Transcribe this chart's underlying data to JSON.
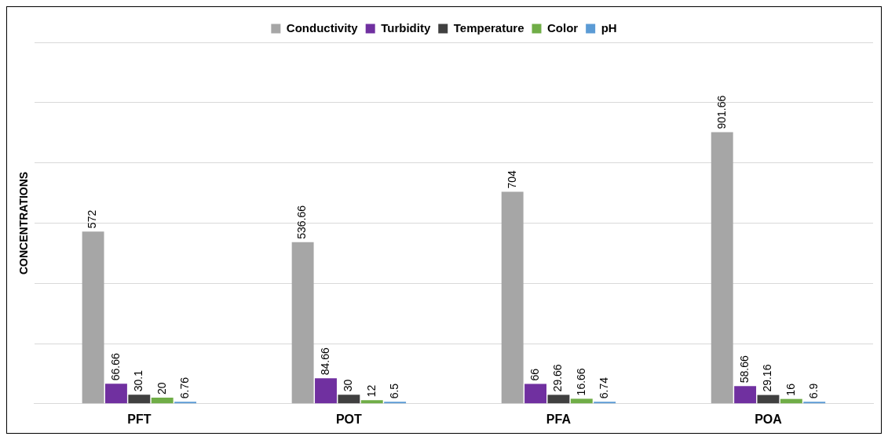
{
  "chart_data": {
    "type": "bar",
    "ylabel": "CONCENTRATIONS",
    "categories": [
      "PFT",
      "POT",
      "PFA",
      "POA"
    ],
    "series": [
      {
        "name": "Conductivity",
        "color": "#a6a6a6",
        "values": [
          572,
          536.66,
          704,
          901.66
        ]
      },
      {
        "name": "Turbidity",
        "color": "#7030a0",
        "values": [
          66.66,
          84.66,
          66,
          58.66
        ]
      },
      {
        "name": "Temperature",
        "color": "#404040",
        "values": [
          30.1,
          30,
          29.66,
          29.16
        ]
      },
      {
        "name": "Color",
        "color": "#70ad47",
        "values": [
          20,
          12,
          16.66,
          16
        ]
      },
      {
        "name": "pH",
        "color": "#5b9bd5",
        "values": [
          6.76,
          6.5,
          6.74,
          6.9
        ]
      }
    ],
    "ylim": [
      0,
      1200
    ],
    "yticks": [
      {
        "value": 0,
        "label": null
      },
      {
        "value": 200,
        "label": null
      },
      {
        "value": 400,
        "label": null
      },
      {
        "value": 600,
        "label": null
      },
      {
        "value": 800,
        "label": null
      },
      {
        "value": 1000,
        "label": null
      },
      {
        "value": 1200,
        "label": null
      }
    ],
    "tick_labels": "x",
    "grid": "y",
    "legend": "top",
    "data_labels": true
  }
}
